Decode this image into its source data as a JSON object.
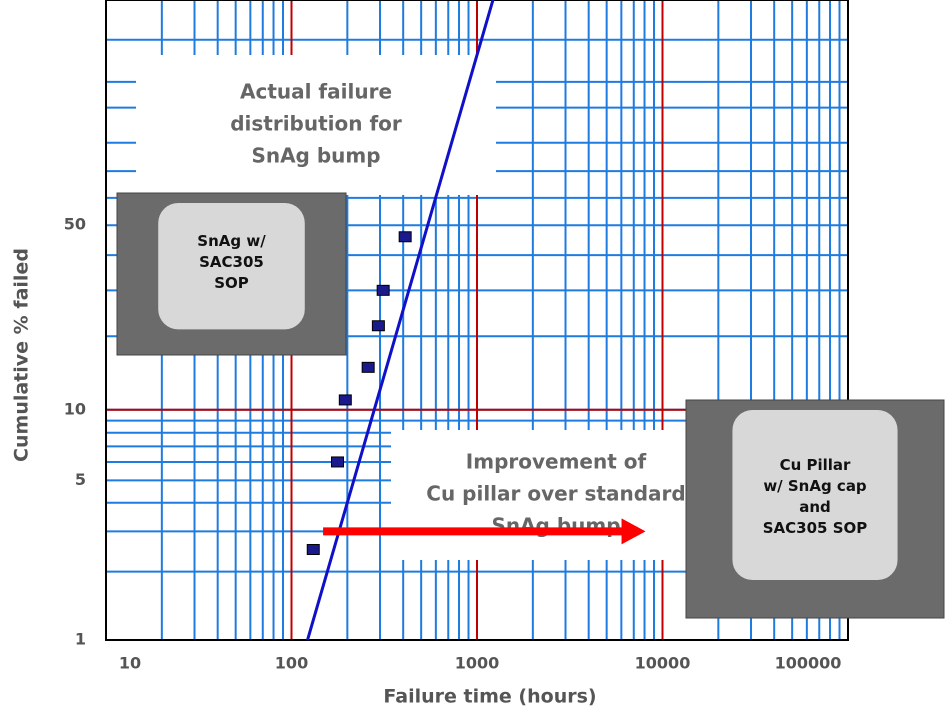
{
  "chart_data": {
    "type": "probability_plot",
    "x_label": "Failure time (hours)",
    "y_label": "Cumulative % failed",
    "xscale": "log",
    "yscale": "weibull",
    "xlim": [
      10,
      100000
    ],
    "ylim": [
      1,
      99.9
    ],
    "xticks": [
      10,
      100,
      1000,
      10000,
      100000
    ],
    "yticks": [
      1,
      5,
      10,
      50
    ],
    "ygrid": [
      1,
      2,
      3,
      4,
      5,
      6,
      7,
      8,
      9,
      10,
      20,
      30,
      40,
      50,
      60,
      70,
      80,
      90,
      95,
      99
    ],
    "ymajor": [
      10
    ],
    "grid_color": "#1e7be0",
    "major_color": "#c00000",
    "series": [
      {
        "name": "SnAg bump",
        "color": "#1a1a8c",
        "x": [
          131,
          177,
          195,
          259,
          294,
          312,
          410
        ],
        "values": [
          2.5,
          6,
          11,
          15,
          22,
          30,
          46
        ]
      }
    ],
    "fit_line": {
      "color": "#1010c8",
      "x": [
        122,
        1219
      ],
      "values": [
        1,
        99.9
      ]
    },
    "arrow": {
      "color": "#ff0000",
      "x": [
        148,
        8100
      ],
      "values": [
        3,
        3
      ]
    },
    "annotations": [
      {
        "lines": [
          "Actual failure",
          "distribution for",
          "SnAg bump"
        ]
      },
      {
        "lines": [
          "Improvement of",
          "Cu pillar over standard",
          "SnAg bump"
        ]
      }
    ],
    "insets": [
      {
        "lines": [
          "SnAg w/",
          "SAC305",
          "SOP"
        ]
      },
      {
        "lines": [
          "Cu Pillar",
          "w/ SnAg cap",
          "and",
          "SAC305 SOP"
        ]
      }
    ]
  }
}
